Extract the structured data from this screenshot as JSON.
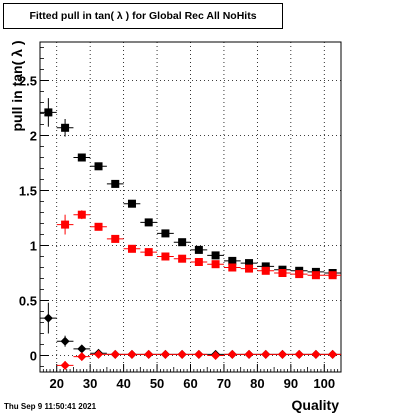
{
  "chart_data": {
    "type": "scatter",
    "title": "Fitted pull in tan( λ ) for Global Rec All NoHits",
    "xlabel": "Quality",
    "ylabel": "pull in tan( λ )",
    "x_ticks": [
      "20",
      "30",
      "40",
      "50",
      "60",
      "70",
      "80",
      "90",
      "100"
    ],
    "y_ticks": [
      "0",
      "0.5",
      "1",
      "1.5",
      "2",
      "2.5"
    ],
    "xlim": [
      15,
      105
    ],
    "ylim": [
      -0.15,
      2.85
    ],
    "grid": true,
    "series": [
      {
        "marker": "square",
        "color": "#000000",
        "x": [
          17.5,
          22.5,
          27.5,
          32.5,
          37.5,
          42.5,
          47.5,
          52.5,
          57.5,
          62.5,
          67.5,
          72.5,
          77.5,
          82.5,
          87.5,
          92.5,
          97.5,
          102.5
        ],
        "y": [
          2.21,
          2.07,
          1.8,
          1.72,
          1.56,
          1.38,
          1.21,
          1.11,
          1.03,
          0.96,
          0.91,
          0.86,
          0.84,
          0.81,
          0.78,
          0.77,
          0.76,
          0.75
        ],
        "yerr": [
          0.13,
          0.08,
          0.02,
          0.02,
          0.02,
          0.01,
          0.01,
          0.01,
          0.01,
          0.01,
          0.01,
          0.01,
          0.01,
          0.01,
          0.01,
          0.01,
          0.01,
          0.01
        ]
      },
      {
        "marker": "square",
        "color": "#ff0000",
        "x": [
          22.5,
          27.5,
          32.5,
          37.5,
          42.5,
          47.5,
          52.5,
          57.5,
          62.5,
          67.5,
          72.5,
          77.5,
          82.5,
          87.5,
          92.5,
          97.5,
          102.5
        ],
        "y": [
          1.19,
          1.28,
          1.17,
          1.06,
          0.97,
          0.94,
          0.9,
          0.88,
          0.85,
          0.83,
          0.8,
          0.79,
          0.77,
          0.75,
          0.74,
          0.73,
          0.73
        ],
        "yerr": [
          0.09,
          0.04,
          0.02,
          0.02,
          0.01,
          0.01,
          0.01,
          0.01,
          0.01,
          0.01,
          0.01,
          0.01,
          0.01,
          0.01,
          0.01,
          0.01,
          0.01
        ]
      },
      {
        "marker": "diamond",
        "color": "#000000",
        "x": [
          17.5,
          22.5,
          27.5,
          32.5,
          37.5,
          42.5,
          47.5,
          52.5,
          57.5,
          62.5,
          67.5,
          72.5,
          77.5,
          82.5,
          87.5,
          92.5,
          97.5,
          102.5
        ],
        "y": [
          0.34,
          0.13,
          0.06,
          0.02,
          0.01,
          0.01,
          0.01,
          0.01,
          0.01,
          0.01,
          0.01,
          0.01,
          0.01,
          0.01,
          0.01,
          0.01,
          0.01,
          0.01
        ],
        "yerr": [
          0.14,
          0.05,
          0.02,
          0.01,
          0.01,
          0.01,
          0.01,
          0.01,
          0.01,
          0.01,
          0.01,
          0.01,
          0.01,
          0.01,
          0.01,
          0.01,
          0.01,
          0.01
        ]
      },
      {
        "marker": "diamond",
        "color": "#ff0000",
        "x": [
          22.5,
          27.5,
          32.5,
          37.5,
          42.5,
          47.5,
          52.5,
          57.5,
          62.5,
          67.5,
          72.5,
          77.5,
          82.5,
          87.5,
          92.5,
          97.5,
          102.5
        ],
        "y": [
          -0.09,
          -0.01,
          0.01,
          0.01,
          0.01,
          0.01,
          0.01,
          0.01,
          0.01,
          0.0,
          0.01,
          0.01,
          0.01,
          0.01,
          0.01,
          0.01,
          0.01
        ],
        "yerr": [
          0.04,
          0.02,
          0.01,
          0.01,
          0.01,
          0.01,
          0.01,
          0.01,
          0.01,
          0.01,
          0.01,
          0.01,
          0.01,
          0.01,
          0.01,
          0.01,
          0.01
        ]
      }
    ]
  },
  "footer": "Thu Sep  9 11:50:41 2021"
}
